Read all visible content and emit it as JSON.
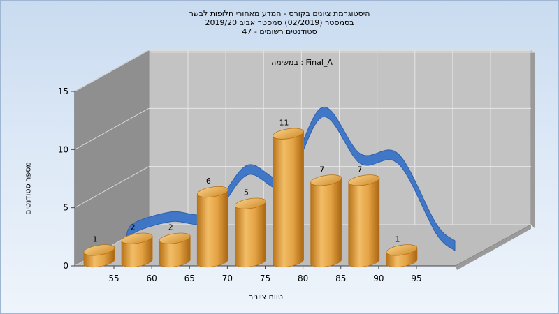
{
  "header": {
    "lines": [
      "היסטוגרמת ציונים בקורס - המדע מאחורי חלופות לבשר",
      "בסמסטר  (02/2019)  סמסטר אביב 2019/20",
      "סטודנטים רשומים - 47"
    ]
  },
  "chart_data": {
    "type": "bar",
    "title": "היסטוגרמת ציונים בקורס - המדע מאחורי חלופות לבשר",
    "subtitle": "במשימה : Final_A",
    "xlabel": "טווח ציונים",
    "ylabel": "מספר סטודנטים",
    "x_ticks": [
      "55",
      "60",
      "65",
      "70",
      "75",
      "80",
      "85",
      "90",
      "95"
    ],
    "y_ticks": [
      0,
      5,
      10,
      15
    ],
    "ylim": [
      0,
      15
    ],
    "categories": [
      "50-55",
      "55-60",
      "60-65",
      "65-70",
      "70-75",
      "75-80",
      "80-85",
      "85-90",
      "90-95"
    ],
    "values": [
      1,
      2,
      2,
      6,
      5,
      11,
      7,
      7,
      1
    ],
    "value_labels": [
      "1",
      "2",
      "2",
      "6",
      "5",
      "11",
      "7",
      "7",
      "1"
    ],
    "series": [
      {
        "type": "bar",
        "values": [
          1,
          2,
          2,
          6,
          5,
          11,
          7,
          7,
          1
        ]
      },
      {
        "type": "curve",
        "values": [
          1,
          2,
          2,
          6,
          5,
          11,
          7,
          7,
          1
        ]
      }
    ],
    "grid": true,
    "legend": "none",
    "colors": {
      "bar": "#e7a848",
      "bar_dark": "#b87318",
      "curve": "#3a74c8",
      "wall": "#c3c3c3",
      "side_wall": "#8f8f8f",
      "floor": "#bdbdbd"
    }
  }
}
